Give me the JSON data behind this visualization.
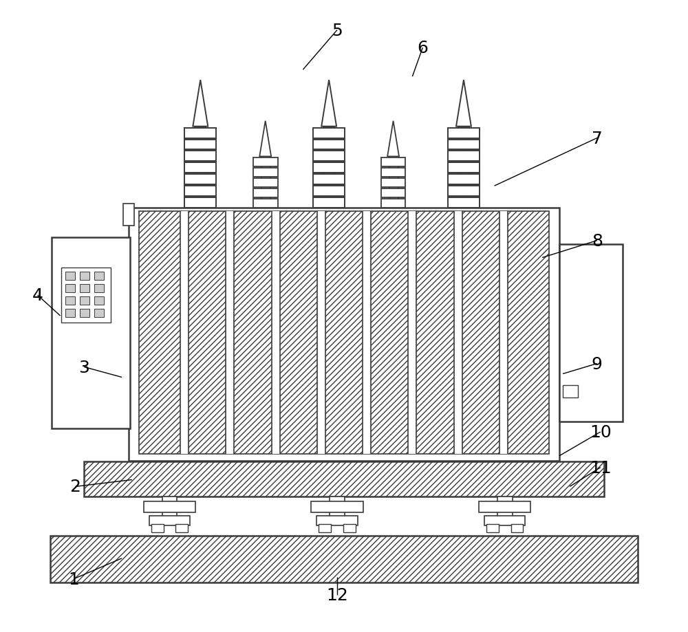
{
  "bg_color": "#ffffff",
  "line_color": "#3a3a3a",
  "fig_width": 10.0,
  "fig_height": 9.2,
  "dpi": 100
}
